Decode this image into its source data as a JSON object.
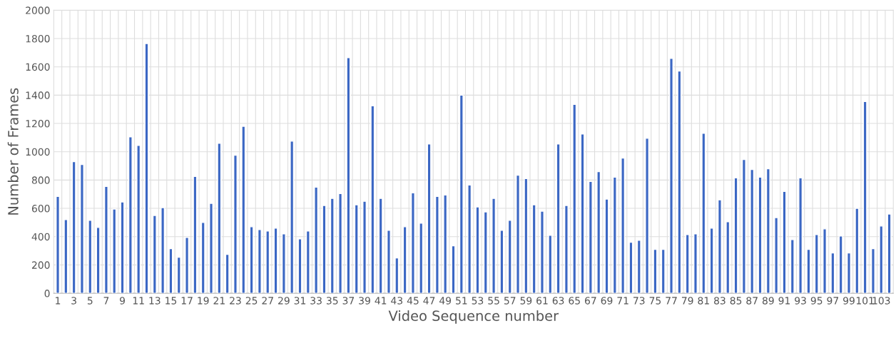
{
  "chart_data": {
    "type": "bar",
    "xlabel": "Video Sequence number",
    "ylabel": "Number of Frames",
    "categories": [
      "1",
      null,
      "3",
      null,
      "5",
      null,
      "7",
      null,
      "9",
      null,
      "11",
      null,
      "13",
      null,
      "15",
      null,
      "17",
      null,
      "19",
      null,
      "21",
      null,
      "23",
      null,
      "25",
      null,
      "27",
      null,
      "29",
      null,
      "31",
      null,
      "33",
      null,
      "35",
      null,
      "37",
      null,
      "39",
      null,
      "41",
      null,
      "43",
      null,
      "45",
      null,
      "47",
      null,
      "49",
      null,
      "51",
      null,
      "53",
      null,
      "55",
      null,
      "57",
      null,
      "59",
      null,
      "61",
      null,
      "63",
      null,
      "65",
      null,
      "67",
      null,
      "69",
      null,
      "71",
      null,
      "73",
      null,
      "75",
      null,
      "77",
      null,
      "79",
      null,
      "81",
      null,
      "83",
      null,
      "85",
      null,
      "87",
      null,
      "89",
      null,
      "91",
      null,
      "93",
      null,
      "95",
      null,
      "97",
      null,
      "99",
      null,
      "101",
      null,
      "103",
      null
    ],
    "values": [
      685,
      520,
      930,
      910,
      515,
      465,
      755,
      595,
      645,
      1105,
      1045,
      1765,
      550,
      605,
      315,
      255,
      395,
      825,
      500,
      635,
      1060,
      275,
      975,
      1180,
      470,
      450,
      440,
      460,
      420,
      1075,
      385,
      440,
      750,
      620,
      670,
      705,
      1665,
      625,
      650,
      1325,
      670,
      445,
      250,
      470,
      710,
      495,
      1055,
      685,
      695,
      335,
      1400,
      765,
      610,
      575,
      670,
      445,
      515,
      835,
      810,
      625,
      580,
      410,
      1055,
      620,
      1335,
      1125,
      790,
      860,
      665,
      820,
      955,
      360,
      375,
      1095,
      310,
      310,
      1660,
      1570,
      415,
      420,
      1130,
      460,
      660,
      505,
      815,
      945,
      875,
      820,
      880,
      535,
      720,
      380,
      815,
      310,
      415,
      455,
      285,
      405,
      285,
      600,
      1355,
      315,
      475,
      560
    ],
    "color": "#3b67c4",
    "ylim": [
      0,
      2000
    ],
    "yticks": [
      0,
      200,
      400,
      600,
      800,
      1000,
      1200,
      1400,
      1600,
      1800,
      2000
    ],
    "grid": true
  }
}
